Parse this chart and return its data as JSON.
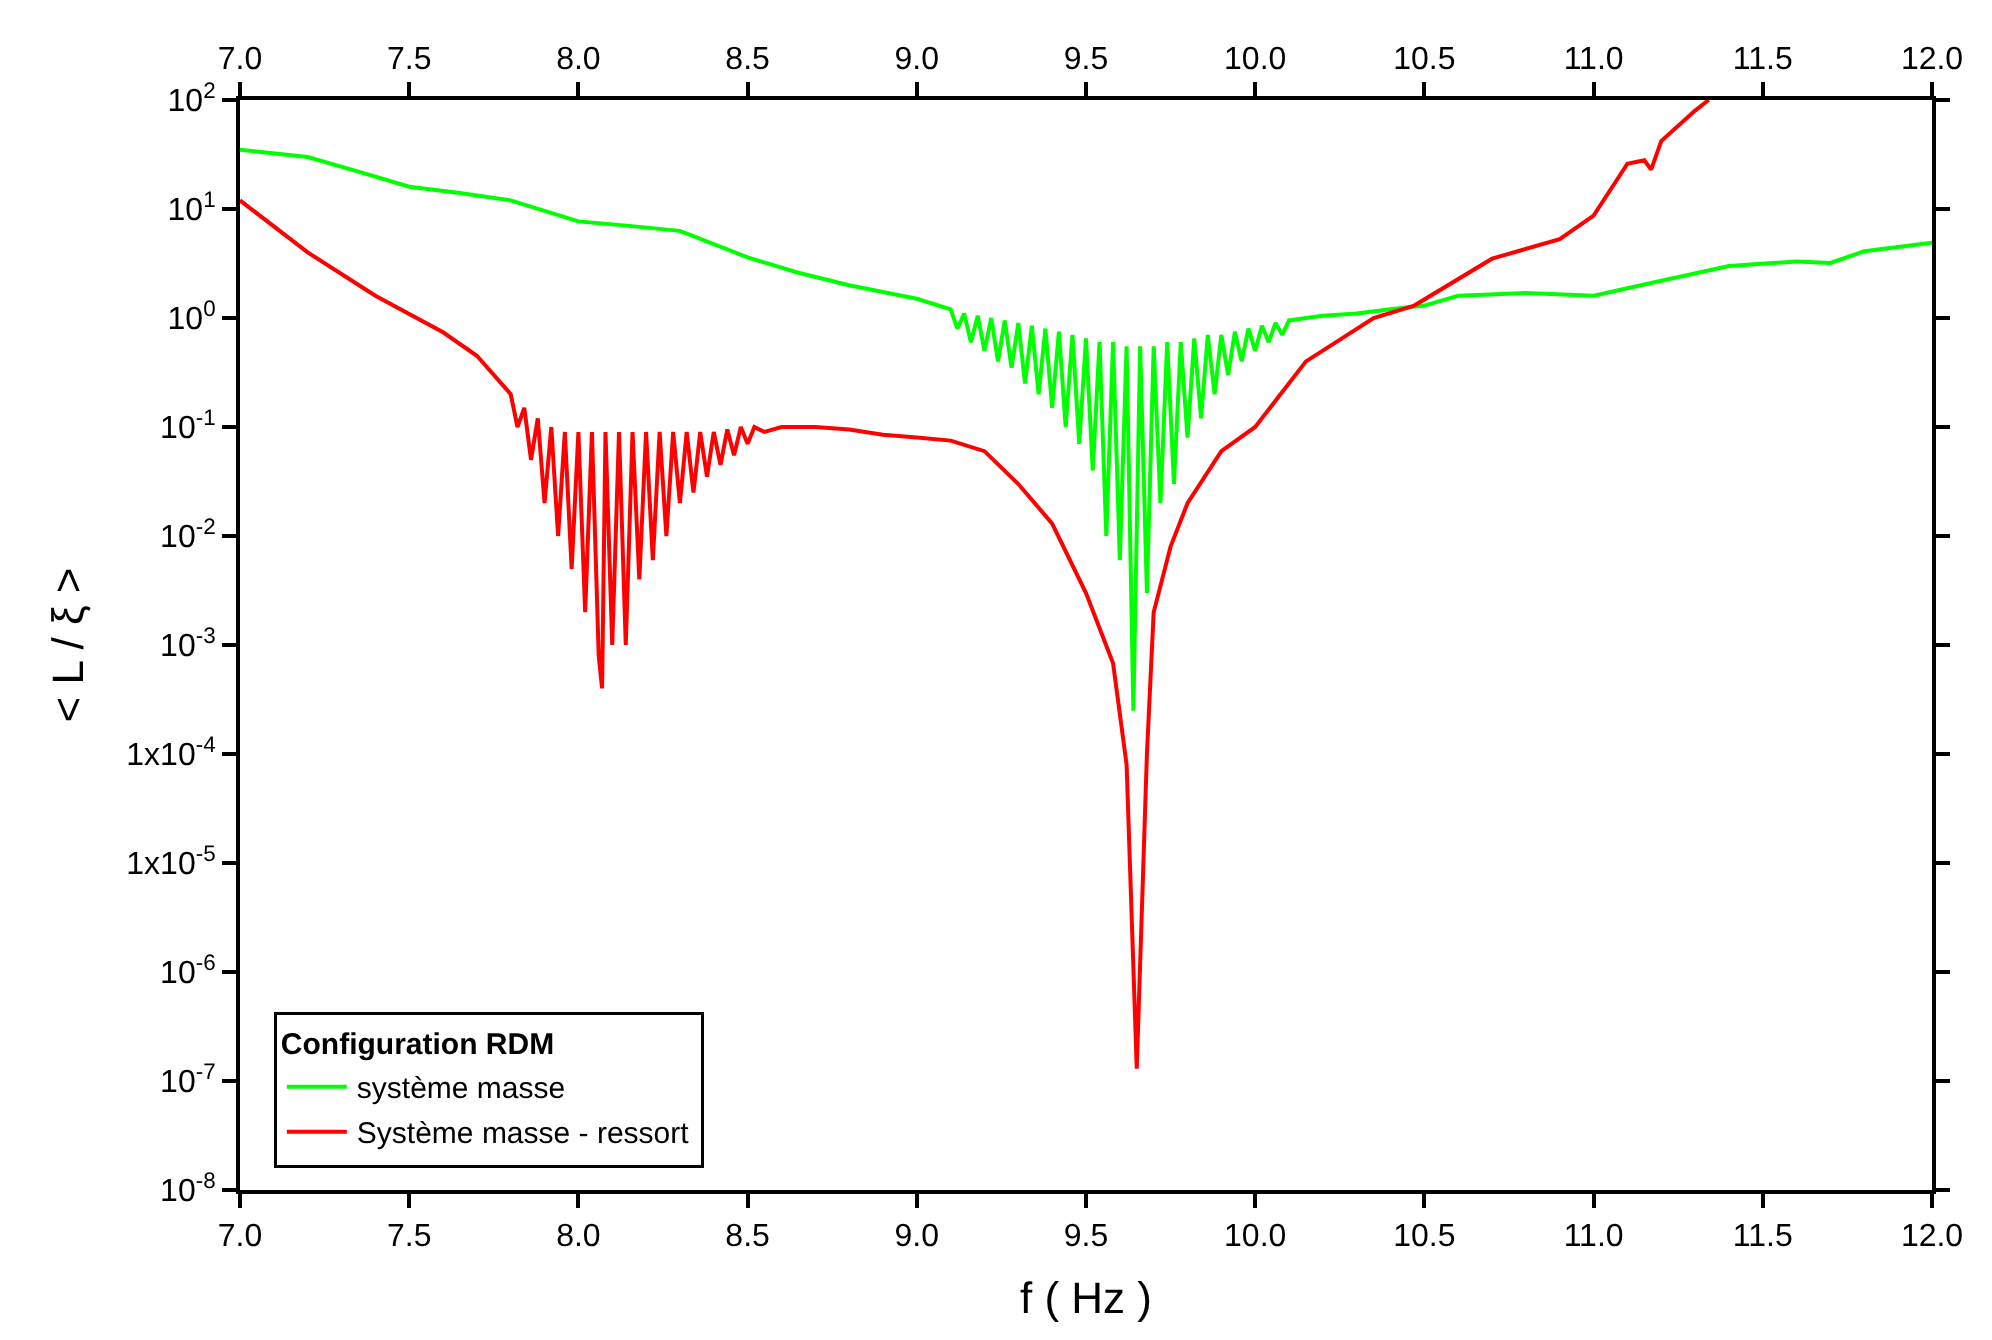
{
  "chart_data": {
    "type": "line",
    "xlabel": "f ( Hz )",
    "ylabel": "< L / ξ >",
    "legend_title": "Configuration RDM",
    "xlim": [
      7.0,
      12.0
    ],
    "xticks": [
      {
        "value": 7.0,
        "label": "7.0"
      },
      {
        "value": 7.5,
        "label": "7.5"
      },
      {
        "value": 8.0,
        "label": "8.0"
      },
      {
        "value": 8.5,
        "label": "8.5"
      },
      {
        "value": 9.0,
        "label": "9.0"
      },
      {
        "value": 9.5,
        "label": "9.5"
      },
      {
        "value": 10.0,
        "label": "10.0"
      },
      {
        "value": 10.5,
        "label": "10.5"
      },
      {
        "value": 11.0,
        "label": "11.0"
      },
      {
        "value": 11.5,
        "label": "11.5"
      },
      {
        "value": 12.0,
        "label": "12.0"
      }
    ],
    "x2lim": [
      7.0,
      12.0
    ],
    "x2ticks": [
      {
        "value": 7.0,
        "label": "7.0"
      },
      {
        "value": 7.5,
        "label": "7.5"
      },
      {
        "value": 8.0,
        "label": "8.0"
      },
      {
        "value": 8.5,
        "label": "8.5"
      },
      {
        "value": 9.0,
        "label": "9.0"
      },
      {
        "value": 9.5,
        "label": "9.5"
      },
      {
        "value": 10.0,
        "label": "10.0"
      },
      {
        "value": 10.5,
        "label": "10.5"
      },
      {
        "value": 11.0,
        "label": "11.0"
      },
      {
        "value": 11.5,
        "label": "11.5"
      },
      {
        "value": 12.0,
        "label": "12.0"
      }
    ],
    "ylim": [
      1e-08,
      100
    ],
    "log": "y",
    "yticks": [
      {
        "value": 1e-08,
        "label": "10$^{-8}$"
      },
      {
        "value": 1e-07,
        "label": "10$^{-7}$"
      },
      {
        "value": 1e-06,
        "label": "10$^{-6}$"
      },
      {
        "value": 1e-05,
        "label": "1x10$^{-5}$"
      },
      {
        "value": 0.0001,
        "label": "1x10$^{-4}$"
      },
      {
        "value": 0.001,
        "label": "10$^{-3}$"
      },
      {
        "value": 0.01,
        "label": "10$^{-2}$"
      },
      {
        "value": 0.1,
        "label": "10$^{-1}$"
      },
      {
        "value": 1,
        "label": "10$^{0}$"
      },
      {
        "value": 10,
        "label": "10$^{1}$"
      },
      {
        "value": 100,
        "label": "10$^{2}$"
      }
    ],
    "legend": "bottom left",
    "marker": "none",
    "line_style": "solid",
    "series": [
      {
        "name": "système masse",
        "color": "#00ff00",
        "x": [
          7.0,
          7.2,
          7.35,
          7.5,
          7.65,
          7.8,
          8.0,
          8.15,
          8.3,
          8.5,
          8.65,
          8.8,
          9.0,
          9.1,
          9.12,
          9.14,
          9.16,
          9.18,
          9.2,
          9.22,
          9.24,
          9.26,
          9.28,
          9.3,
          9.32,
          9.34,
          9.36,
          9.38,
          9.4,
          9.42,
          9.44,
          9.46,
          9.48,
          9.5,
          9.52,
          9.54,
          9.56,
          9.58,
          9.6,
          9.62,
          9.64,
          9.66,
          9.68,
          9.7,
          9.72,
          9.74,
          9.76,
          9.78,
          9.8,
          9.82,
          9.84,
          9.86,
          9.88,
          9.9,
          9.92,
          9.94,
          9.96,
          9.98,
          10.0,
          10.02,
          10.04,
          10.06,
          10.08,
          10.1,
          10.15,
          10.2,
          10.3,
          10.4,
          10.5,
          10.6,
          10.8,
          11.0,
          11.2,
          11.4,
          11.6,
          11.7,
          11.8,
          12.0
        ],
        "values": [
          35,
          30,
          22,
          16,
          14,
          12,
          7.7,
          7.0,
          6.3,
          3.6,
          2.6,
          2.0,
          1.5,
          1.2,
          0.8,
          1.1,
          0.6,
          1.05,
          0.5,
          1.0,
          0.4,
          0.95,
          0.35,
          0.9,
          0.25,
          0.85,
          0.2,
          0.8,
          0.15,
          0.75,
          0.1,
          0.7,
          0.07,
          0.65,
          0.04,
          0.6,
          0.01,
          0.6,
          0.006,
          0.55,
          0.00025,
          0.55,
          0.003,
          0.55,
          0.02,
          0.6,
          0.03,
          0.6,
          0.08,
          0.65,
          0.12,
          0.7,
          0.2,
          0.7,
          0.3,
          0.75,
          0.4,
          0.8,
          0.5,
          0.85,
          0.6,
          0.9,
          0.7,
          0.95,
          1.0,
          1.05,
          1.1,
          1.2,
          1.3,
          1.6,
          1.7,
          1.6,
          2.2,
          3.0,
          3.3,
          3.2,
          4.1,
          4.9
        ]
      },
      {
        "name": "Système masse - ressort",
        "color": "#ff0000",
        "x": [
          7.0,
          7.2,
          7.4,
          7.6,
          7.7,
          7.8,
          7.82,
          7.84,
          7.86,
          7.88,
          7.9,
          7.92,
          7.94,
          7.96,
          7.98,
          8.0,
          8.02,
          8.04,
          8.06,
          8.07,
          8.08,
          8.1,
          8.12,
          8.14,
          8.16,
          8.18,
          8.2,
          8.22,
          8.24,
          8.26,
          8.28,
          8.3,
          8.32,
          8.34,
          8.36,
          8.38,
          8.4,
          8.42,
          8.44,
          8.46,
          8.48,
          8.5,
          8.52,
          8.55,
          8.6,
          8.7,
          8.8,
          8.9,
          9.0,
          9.1,
          9.2,
          9.3,
          9.4,
          9.5,
          9.58,
          9.62,
          9.65,
          9.68,
          9.7,
          9.75,
          9.8,
          9.9,
          10.0,
          10.15,
          10.35,
          10.47,
          10.7,
          10.9,
          11.0,
          11.1,
          11.15,
          11.17,
          11.2,
          11.3,
          11.34
        ],
        "values": [
          12,
          4,
          1.6,
          0.74,
          0.45,
          0.2,
          0.1,
          0.15,
          0.05,
          0.12,
          0.02,
          0.1,
          0.01,
          0.09,
          0.005,
          0.09,
          0.002,
          0.09,
          0.0008,
          0.0004,
          0.09,
          0.001,
          0.09,
          0.001,
          0.09,
          0.004,
          0.09,
          0.006,
          0.09,
          0.01,
          0.09,
          0.02,
          0.09,
          0.025,
          0.09,
          0.035,
          0.09,
          0.045,
          0.095,
          0.055,
          0.1,
          0.07,
          0.1,
          0.09,
          0.1,
          0.1,
          0.095,
          0.085,
          0.08,
          0.075,
          0.06,
          0.03,
          0.013,
          0.003,
          0.00068,
          8e-05,
          1.3e-07,
          0.0001,
          0.002,
          0.008,
          0.02,
          0.06,
          0.1,
          0.4,
          1.0,
          1.3,
          3.5,
          5.3,
          8.7,
          26,
          28,
          23,
          42,
          80,
          100
        ]
      }
    ]
  }
}
